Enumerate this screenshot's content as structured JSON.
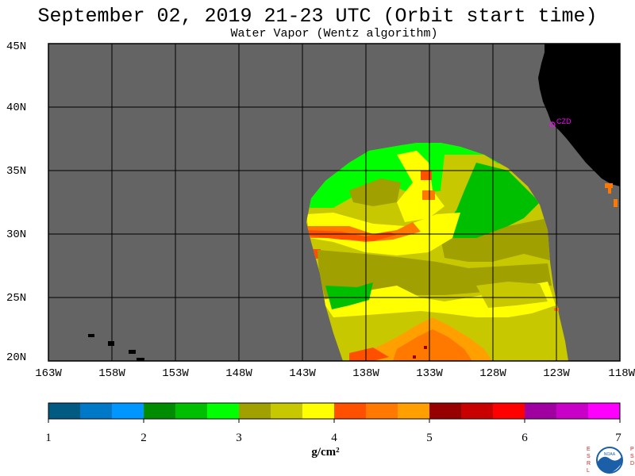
{
  "title": "September 02, 2019  21-23 UTC  (Orbit start time)",
  "subtitle": "Water Vapor (Wentz algorithm)",
  "map": {
    "lat_labels": [
      "45N",
      "40N",
      "35N",
      "30N",
      "25N",
      "20N"
    ],
    "lat_values": [
      45,
      40,
      35,
      30,
      25,
      20
    ],
    "lon_labels": [
      "163W",
      "158W",
      "153W",
      "148W",
      "143W",
      "138W",
      "133W",
      "128W",
      "123W",
      "118W"
    ],
    "lon_values": [
      -163,
      -158,
      -153,
      -148,
      -143,
      -138,
      -133,
      -128,
      -123,
      -118
    ],
    "lat_range": [
      20,
      45
    ],
    "lon_range": [
      -163,
      -118
    ],
    "station_label": "CZD",
    "colors": {
      "missing": "#646464",
      "land": "#000000",
      "grid": "#000000",
      "station": "#ff00ff"
    }
  },
  "colorbar": {
    "tick_labels": [
      "1",
      "2",
      "3",
      "4",
      "5",
      "6",
      "7"
    ],
    "range": [
      1,
      7
    ],
    "units": "g/cm²",
    "colors": [
      "#005a82",
      "#0078c8",
      "#0096ff",
      "#008c00",
      "#00be00",
      "#00ff00",
      "#a0a000",
      "#c8c800",
      "#ffff00",
      "#ff5000",
      "#ff7800",
      "#ffa000",
      "#960000",
      "#c80000",
      "#ff0000",
      "#a000a0",
      "#c800c8",
      "#ff00ff"
    ]
  },
  "logo": {
    "left_text": "ESRL",
    "right_text": "PSD",
    "center_text": "NOAA"
  }
}
